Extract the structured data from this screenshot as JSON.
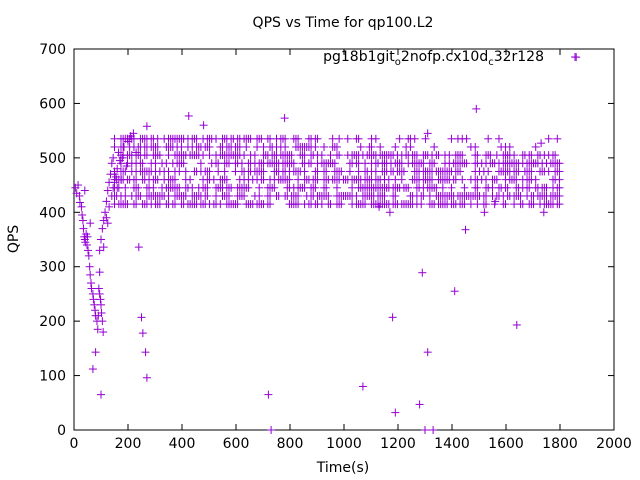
{
  "chart_data": {
    "type": "scatter",
    "title": "QPS vs Time for qp100.L2",
    "xlabel": "Time(s)",
    "ylabel": "QPS",
    "xlim": [
      0,
      2000
    ],
    "ylim": [
      0,
      700
    ],
    "xticks": [
      0,
      200,
      400,
      600,
      800,
      1000,
      1200,
      1400,
      1600,
      1800,
      2000
    ],
    "yticks": [
      0,
      100,
      200,
      300,
      400,
      500,
      600,
      700
    ],
    "grid": false,
    "legend_position": "top-right",
    "series": [
      {
        "name": "pg18b1git_o2nofp.cx10d_c32r128",
        "name_parts": [
          {
            "text": "pg18b1git",
            "sub": false
          },
          {
            "text": "o",
            "sub": true
          },
          {
            "text": "2nofp.cx10d",
            "sub": false
          },
          {
            "text": "c",
            "sub": true
          },
          {
            "text": "32r128",
            "sub": false
          }
        ],
        "color": "#9400d3",
        "marker": "plus",
        "points": [
          [
            1860,
            685
          ],
          [
            1490,
            590
          ],
          [
            425,
            577
          ],
          [
            780,
            573
          ],
          [
            480,
            560
          ],
          [
            270,
            558
          ],
          [
            1310,
            545
          ],
          [
            1730,
            527
          ],
          [
            1410,
            255
          ],
          [
            1640,
            193
          ],
          [
            1290,
            289
          ],
          [
            1180,
            207
          ],
          [
            1070,
            80
          ],
          [
            1190,
            32
          ],
          [
            1280,
            47
          ],
          [
            1310,
            143
          ],
          [
            1300,
            0
          ],
          [
            1330,
            0
          ],
          [
            730,
            0
          ],
          [
            720,
            65
          ],
          [
            240,
            336
          ],
          [
            250,
            207
          ],
          [
            255,
            178
          ],
          [
            265,
            143
          ],
          [
            270,
            96
          ],
          [
            100,
            65
          ],
          [
            70,
            112
          ],
          [
            80,
            143
          ],
          [
            90,
            210
          ],
          [
            95,
            290
          ],
          [
            110,
            336
          ],
          [
            60,
            380
          ],
          [
            40,
            440
          ],
          [
            50,
            355
          ],
          [
            1450,
            368
          ],
          [
            1520,
            400
          ],
          [
            1740,
            400
          ],
          [
            1560,
            420
          ],
          [
            1170,
            400
          ],
          [
            1130,
            410
          ],
          [
            5,
            445
          ],
          [
            10,
            435
          ],
          [
            15,
            450
          ],
          [
            20,
            430
          ],
          [
            22,
            418
          ],
          [
            28,
            410
          ],
          [
            30,
            395
          ],
          [
            33,
            385
          ],
          [
            35,
            370
          ],
          [
            38,
            355
          ],
          [
            40,
            350
          ],
          [
            42,
            345
          ],
          [
            45,
            360
          ],
          [
            48,
            340
          ],
          [
            52,
            330
          ],
          [
            55,
            320
          ],
          [
            58,
            300
          ],
          [
            60,
            285
          ],
          [
            63,
            270
          ],
          [
            65,
            260
          ],
          [
            70,
            250
          ],
          [
            72,
            240
          ],
          [
            75,
            230
          ],
          [
            78,
            220
          ],
          [
            80,
            210
          ],
          [
            85,
            200
          ],
          [
            88,
            185
          ],
          [
            92,
            260
          ],
          [
            95,
            250
          ],
          [
            98,
            240
          ],
          [
            100,
            230
          ],
          [
            102,
            215
          ],
          [
            105,
            200
          ],
          [
            108,
            180
          ],
          [
            95,
            330
          ],
          [
            100,
            350
          ],
          [
            105,
            370
          ],
          [
            110,
            385
          ],
          [
            115,
            400
          ],
          [
            120,
            420
          ],
          [
            125,
            440
          ],
          [
            130,
            455
          ],
          [
            135,
            470
          ],
          [
            140,
            490
          ],
          [
            145,
            500
          ],
          [
            150,
            470
          ],
          [
            160,
            480
          ],
          [
            165,
            510
          ],
          [
            170,
            495
          ],
          [
            175,
            460
          ],
          [
            180,
            500
          ],
          [
            185,
            520
          ],
          [
            190,
            475
          ],
          [
            195,
            485
          ],
          [
            200,
            530
          ],
          [
            210,
            540
          ],
          [
            220,
            545
          ],
          [
            230,
            510
          ],
          [
            120,
            390
          ],
          [
            125,
            380
          ],
          [
            130,
            410
          ],
          [
            140,
            430
          ],
          [
            145,
            445
          ],
          [
            150,
            455
          ],
          [
            155,
            465
          ],
          [
            160,
            445
          ]
        ],
        "bands": [
          {
            "x": [
              150,
              1800
            ],
            "y": 415
          },
          {
            "x": [
              150,
              1800
            ],
            "y": 430
          },
          {
            "x": [
              150,
              1800
            ],
            "y": 445
          },
          {
            "x": [
              150,
              1800
            ],
            "y": 460
          },
          {
            "x": [
              150,
              1800
            ],
            "y": 475
          },
          {
            "x": [
              150,
              1800
            ],
            "y": 490
          },
          {
            "x": [
              150,
              1800
            ],
            "y": 505
          },
          {
            "x": [
              150,
              1800
            ],
            "y": 520
          },
          {
            "x": [
              150,
              1800
            ],
            "y": 535
          }
        ]
      }
    ]
  }
}
